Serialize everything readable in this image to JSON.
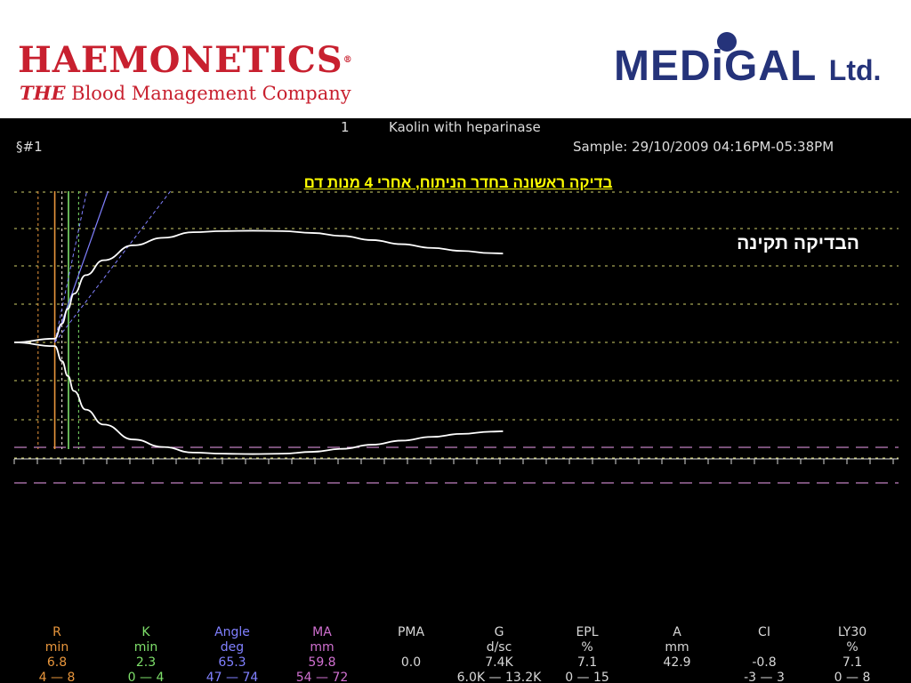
{
  "header": {
    "haemonetics": {
      "title": "HAEMONETICS",
      "reg": "®",
      "tagline_em": "THE",
      "tagline_rest": " Blood Management Company"
    },
    "medigal": {
      "name": "MEDiGAL",
      "suffix": "Ltd."
    }
  },
  "screen": {
    "channel": "1",
    "test_type": "Kaolin with heparinase",
    "id": "§#1",
    "sample": "Sample: 29/10/2009 04:16PM-05:38PM",
    "note_yellow": "בדיקה ראשונה בחדר הניתוח, אחרי 4 מנות דם",
    "note_white": "הבדיקה תקינה"
  },
  "colors": {
    "R": "#e8963c",
    "K": "#7ee06a",
    "Angle": "#8080ff",
    "MA": "#d070d0",
    "plain": "#d8d8d8",
    "trace": "#ffffff",
    "grid": "#cfcf6a",
    "ma_limit": "#c080c0",
    "note": "#ffff00"
  },
  "chart_data": {
    "type": "line",
    "title": "Kaolin with heparinase",
    "xlabel": "",
    "ylabel": "",
    "x_unit": "min",
    "y_unit": "mm (half-amplitude, symmetric)",
    "grid": true,
    "series": [
      {
        "x": [
          0,
          6.8,
          8,
          9,
          10,
          12,
          15,
          20,
          25,
          30,
          35,
          40,
          45,
          50,
          55,
          60,
          65,
          70,
          75,
          80,
          82
        ],
        "values": [
          0,
          1,
          5,
          9,
          13,
          18,
          22,
          26,
          28,
          29.5,
          29.8,
          29.9,
          29.8,
          29.3,
          28.5,
          27.4,
          26.3,
          25.3,
          24.5,
          23.9,
          23.8
        ]
      }
    ],
    "reference_lines_min": {
      "R_limits": [
        4,
        8
      ],
      "R_value": 6.8,
      "K_limits": [
        0,
        4
      ],
      "K_value": 2.3
    },
    "parameters": [
      {
        "name": "R",
        "unit": "min",
        "value": "6.8",
        "range": "4 — 8",
        "color": "R"
      },
      {
        "name": "K",
        "unit": "min",
        "value": "2.3",
        "range": "0 — 4",
        "color": "K"
      },
      {
        "name": "Angle",
        "unit": "deg",
        "value": "65.3",
        "range": "47 — 74",
        "color": "Angle"
      },
      {
        "name": "MA",
        "unit": "mm",
        "value": "59.8",
        "range": "54 — 72",
        "color": "MA"
      },
      {
        "name": "PMA",
        "unit": "",
        "value": "0.0",
        "range": "",
        "color": "plain"
      },
      {
        "name": "G",
        "unit": "d/sc",
        "value": "7.4K",
        "range": "6.0K — 13.2K",
        "color": "plain"
      },
      {
        "name": "EPL",
        "unit": "%",
        "value": "7.1",
        "range": "0 — 15",
        "color": "plain"
      },
      {
        "name": "A",
        "unit": "mm",
        "value": "42.9",
        "range": "",
        "color": "plain"
      },
      {
        "name": "CI",
        "unit": "",
        "value": "-0.8",
        "range": "-3 — 3",
        "color": "plain"
      },
      {
        "name": "LY30",
        "unit": "%",
        "value": "7.1",
        "range": "0 — 8",
        "color": "plain"
      }
    ]
  }
}
